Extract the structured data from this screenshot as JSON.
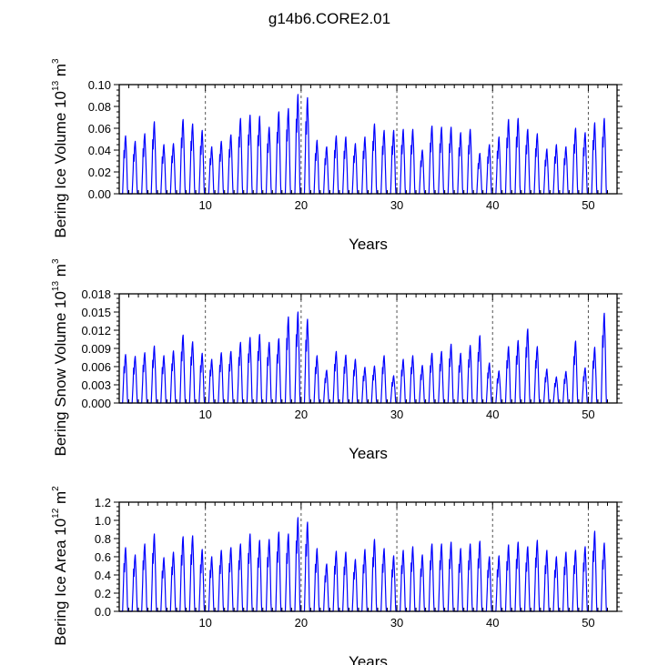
{
  "figure": {
    "title": "g14b6.CORE2.01"
  },
  "chart_data": [
    {
      "type": "line",
      "title": "g14b6.CORE2.01",
      "xlabel": "Years",
      "ylabel": {
        "text": "Bering Ice Volume 10",
        "exp": "13",
        "unit": " m",
        "unit_exp": "3"
      },
      "xlim": [
        1,
        53
      ],
      "ylim": [
        0,
        0.1
      ],
      "xticks": [
        10,
        20,
        30,
        40,
        50
      ],
      "yticks": [
        0,
        0.02,
        0.04,
        0.06,
        0.08,
        0.1
      ],
      "ytick_labels": [
        "0.00",
        "0.02",
        "0.04",
        "0.06",
        "0.08",
        "0.10"
      ],
      "xtick_labels": [
        "10",
        "20",
        "30",
        "40",
        "50"
      ],
      "vlines": [
        10,
        20,
        30,
        40,
        50
      ],
      "grid": false,
      "series": [
        {
          "name": "Bering Ice Volume",
          "color": "#0000ff",
          "cycle_start_year": 1,
          "annual_peaks": [
            0.053,
            0.048,
            0.055,
            0.066,
            0.045,
            0.046,
            0.068,
            0.064,
            0.058,
            0.043,
            0.048,
            0.054,
            0.069,
            0.072,
            0.071,
            0.061,
            0.075,
            0.078,
            0.091,
            0.088,
            0.049,
            0.043,
            0.053,
            0.052,
            0.046,
            0.052,
            0.064,
            0.058,
            0.058,
            0.059,
            0.059,
            0.04,
            0.062,
            0.061,
            0.061,
            0.056,
            0.059,
            0.037,
            0.045,
            0.052,
            0.068,
            0.069,
            0.059,
            0.055,
            0.041,
            0.045,
            0.043,
            0.06,
            0.056,
            0.065,
            0.069
          ]
        }
      ]
    },
    {
      "type": "line",
      "xlabel": "Years",
      "ylabel": {
        "text": "Bering Snow Volume 10",
        "exp": "13",
        "unit": " m",
        "unit_exp": "3"
      },
      "xlim": [
        1,
        53
      ],
      "ylim": [
        0,
        0.018
      ],
      "xticks": [
        10,
        20,
        30,
        40,
        50
      ],
      "yticks": [
        0,
        0.003,
        0.006,
        0.009,
        0.012,
        0.015,
        0.018
      ],
      "ytick_labels": [
        "0.000",
        "0.003",
        "0.006",
        "0.009",
        "0.012",
        "0.015",
        "0.018"
      ],
      "xtick_labels": [
        "10",
        "20",
        "30",
        "40",
        "50"
      ],
      "vlines": [
        10,
        20,
        30,
        40,
        50
      ],
      "grid": false,
      "series": [
        {
          "name": "Bering Snow Volume",
          "color": "#0000ff",
          "cycle_start_year": 1,
          "annual_peaks": [
            0.008,
            0.0077,
            0.0083,
            0.0094,
            0.0078,
            0.0086,
            0.0112,
            0.0101,
            0.0082,
            0.0072,
            0.0083,
            0.0085,
            0.01,
            0.0108,
            0.0113,
            0.01,
            0.0106,
            0.0142,
            0.015,
            0.0138,
            0.0078,
            0.0054,
            0.0085,
            0.0079,
            0.0072,
            0.0059,
            0.0061,
            0.0078,
            0.0045,
            0.0072,
            0.0078,
            0.0062,
            0.0082,
            0.0085,
            0.0097,
            0.0082,
            0.0095,
            0.0111,
            0.0066,
            0.0053,
            0.0093,
            0.0103,
            0.0122,
            0.0093,
            0.0056,
            0.0043,
            0.0052,
            0.0102,
            0.0058,
            0.0092,
            0.0148
          ]
        }
      ]
    },
    {
      "type": "line",
      "xlabel": "Years",
      "ylabel": {
        "text": "Bering Ice Area 10",
        "exp": "12",
        "unit": " m",
        "unit_exp": "2"
      },
      "xlim": [
        1,
        53
      ],
      "ylim": [
        0,
        1.2
      ],
      "xticks": [
        10,
        20,
        30,
        40,
        50
      ],
      "yticks": [
        0,
        0.2,
        0.4,
        0.6,
        0.8,
        1.0,
        1.2
      ],
      "ytick_labels": [
        "0.0",
        "0.2",
        "0.4",
        "0.6",
        "0.8",
        "1.0",
        "1.2"
      ],
      "xtick_labels": [
        "10",
        "20",
        "30",
        "40",
        "50"
      ],
      "vlines": [
        10,
        20,
        30,
        40,
        50
      ],
      "grid": false,
      "series": [
        {
          "name": "Bering Ice Area",
          "color": "#0000ff",
          "cycle_start_year": 1,
          "annual_peaks": [
            0.7,
            0.62,
            0.74,
            0.85,
            0.59,
            0.65,
            0.82,
            0.83,
            0.68,
            0.6,
            0.67,
            0.7,
            0.74,
            0.85,
            0.78,
            0.79,
            0.87,
            0.85,
            1.03,
            0.98,
            0.69,
            0.52,
            0.66,
            0.65,
            0.57,
            0.68,
            0.79,
            0.69,
            0.61,
            0.67,
            0.71,
            0.62,
            0.74,
            0.74,
            0.76,
            0.69,
            0.74,
            0.77,
            0.6,
            0.61,
            0.73,
            0.76,
            0.71,
            0.78,
            0.67,
            0.6,
            0.65,
            0.67,
            0.71,
            0.88,
            0.75
          ]
        }
      ]
    }
  ]
}
